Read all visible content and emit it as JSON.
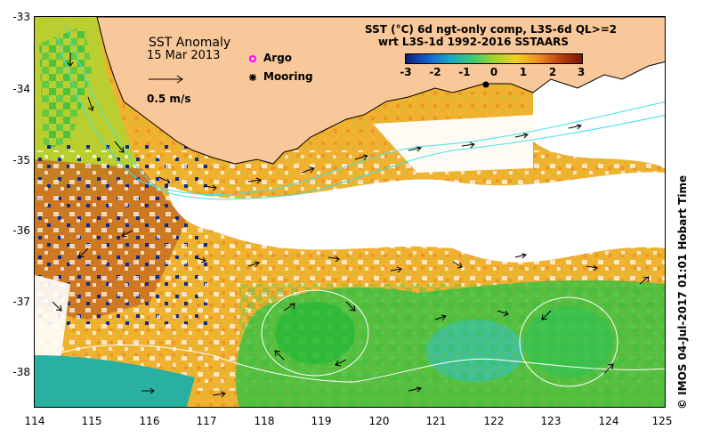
{
  "map": {
    "title": "SST Anomaly",
    "date": "15 Mar 2013",
    "velocity_scale_label": "0.5 m/s",
    "legend": {
      "argo_label": "Argo",
      "mooring_label": "Mooring",
      "argo_color": "#ff00ff",
      "mooring_color": "#000000"
    },
    "colorbar": {
      "title_line1": "SST (°C) 6d ngt-only comp, L3S-6d QL>=2",
      "title_line2": "wrt L3S-1d 1992-2016 SSTAARS",
      "ticks": [
        "-3",
        "-2",
        "-1",
        "0",
        "1",
        "2",
        "3"
      ],
      "range": [
        -3,
        3
      ]
    },
    "axes": {
      "x_ticks": [
        "114",
        "115",
        "116",
        "117",
        "118",
        "119",
        "120",
        "121",
        "122",
        "123",
        "124",
        "125"
      ],
      "y_ticks": [
        "-33",
        "-34",
        "-35",
        "-36",
        "-37",
        "-38"
      ],
      "lon_range": [
        114,
        125
      ],
      "lat_range": [
        -33,
        -38.5
      ]
    },
    "credit": "© IMOS 04-Jul-2017 01:01 Hobart Time",
    "colors": {
      "land": "#f8c89a",
      "no_data": "#ffffff",
      "warm_anomaly": "#f0a020",
      "neutral": "#c8d830",
      "cool_anomaly": "#38c848",
      "depth_contour": "#40e0e8"
    }
  }
}
